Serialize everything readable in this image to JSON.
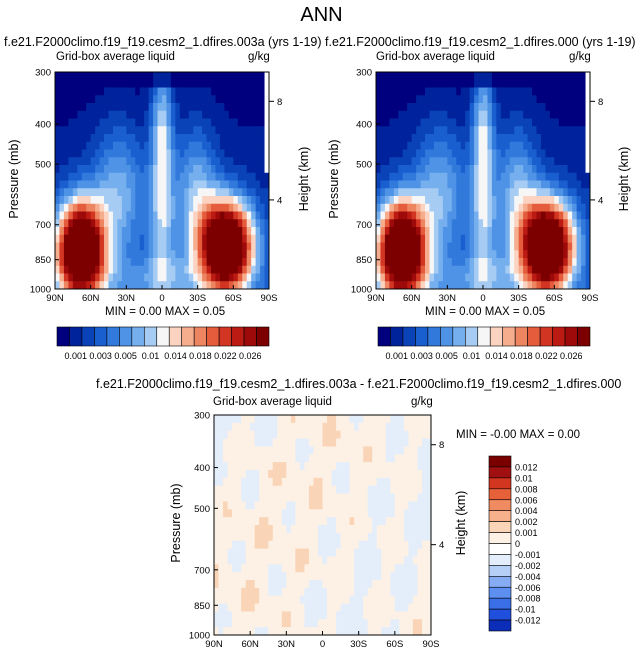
{
  "main_title": "ANN",
  "colors": {
    "seq": [
      "#00007f",
      "#00239c",
      "#0a42b8",
      "#1a5fd0",
      "#3279dc",
      "#4f93e6",
      "#76afee",
      "#a6ccf4",
      "#f6f6f6",
      "#fbd3c0",
      "#f5ad8e",
      "#ee8561",
      "#e45c3c",
      "#d33523",
      "#bb1b12",
      "#9e0a0a",
      "#7c0000"
    ],
    "div": [
      "#00007f",
      "#0b2db8",
      "#1f4fdc",
      "#3a6fe8",
      "#5c8ff0",
      "#86adf3",
      "#b6cff6",
      "#e4eefb",
      "#ffffff",
      "#fdf0e4",
      "#fad4b6",
      "#f6b18c",
      "#f08a60",
      "#e6603a",
      "#d2361e",
      "#a01010",
      "#7a0000"
    ]
  },
  "chart_data": [
    {
      "type": "heatmap",
      "title": "f.e21.F2000climo.f19_f19.cesm2_1.dfires.003a (yrs 1-19)",
      "subtitle_left": "Grid-box average liquid",
      "subtitle_right": "g/kg",
      "xlabel": "",
      "ylabel": "Pressure (mb)",
      "ylabel_right": "Height (km)",
      "x_ticks": [
        "90N",
        "60N",
        "30N",
        "0",
        "30S",
        "60S",
        "90S"
      ],
      "y_ticks": [
        "300",
        "400",
        "500",
        "700",
        "850",
        "1000"
      ],
      "y_tick_values": [
        300,
        400,
        500,
        700,
        850,
        1000
      ],
      "height_ticks": [
        "8",
        "4"
      ],
      "height_tick_pressures": [
        353,
        610
      ],
      "stats": "MIN =  0.00   MAX =  0.05",
      "colorbar_labels": [
        "0.001",
        "0.003",
        "0.005",
        "0.01",
        "0.014",
        "0.018",
        "0.022",
        "0.026"
      ],
      "ylim": [
        300,
        1000
      ]
    },
    {
      "type": "heatmap",
      "title": "f.e21.F2000climo.f19_f19.cesm2_1.dfires.000 (yrs 1-19)",
      "subtitle_left": "Grid-box average liquid",
      "subtitle_right": "g/kg",
      "xlabel": "",
      "ylabel": "Pressure (mb)",
      "ylabel_right": "Height (km)",
      "x_ticks": [
        "90N",
        "60N",
        "30N",
        "0",
        "30S",
        "60S",
        "90S"
      ],
      "y_ticks": [
        "300",
        "400",
        "500",
        "700",
        "850",
        "1000"
      ],
      "y_tick_values": [
        300,
        400,
        500,
        700,
        850,
        1000
      ],
      "height_ticks": [
        "8",
        "4"
      ],
      "height_tick_pressures": [
        353,
        610
      ],
      "stats": "MIN =  0.00   MAX =  0.05",
      "colorbar_labels": [
        "0.001",
        "0.003",
        "0.005",
        "0.01",
        "0.014",
        "0.018",
        "0.022",
        "0.026"
      ],
      "ylim": [
        300,
        1000
      ]
    },
    {
      "type": "heatmap",
      "title": "f.e21.F2000climo.f19_f19.cesm2_1.dfires.003a - f.e21.F2000climo.f19_f19.cesm2_1.dfires.000",
      "subtitle_left": "Grid-box average liquid",
      "subtitle_right": "g/kg",
      "xlabel": "",
      "ylabel": "Pressure (mb)",
      "ylabel_right": "Height (km)",
      "x_ticks": [
        "90N",
        "60N",
        "30N",
        "0",
        "30S",
        "60S",
        "90S"
      ],
      "y_ticks": [
        "300",
        "400",
        "500",
        "700",
        "850",
        "1000"
      ],
      "y_tick_values": [
        300,
        400,
        500,
        700,
        850,
        1000
      ],
      "height_ticks": [
        "8",
        "4"
      ],
      "height_tick_pressures": [
        353,
        610
      ],
      "stats": "MIN = -0.00   MAX =  0.00",
      "colorbar_labels": [
        "0.012",
        "0.01",
        "0.008",
        "0.006",
        "0.004",
        "0.002",
        "0.001",
        "0",
        "-0.001",
        "-0.002",
        "-0.004",
        "-0.006",
        "-0.008",
        "-0.01",
        "-0.012"
      ],
      "ylim": [
        300,
        1000
      ]
    }
  ]
}
